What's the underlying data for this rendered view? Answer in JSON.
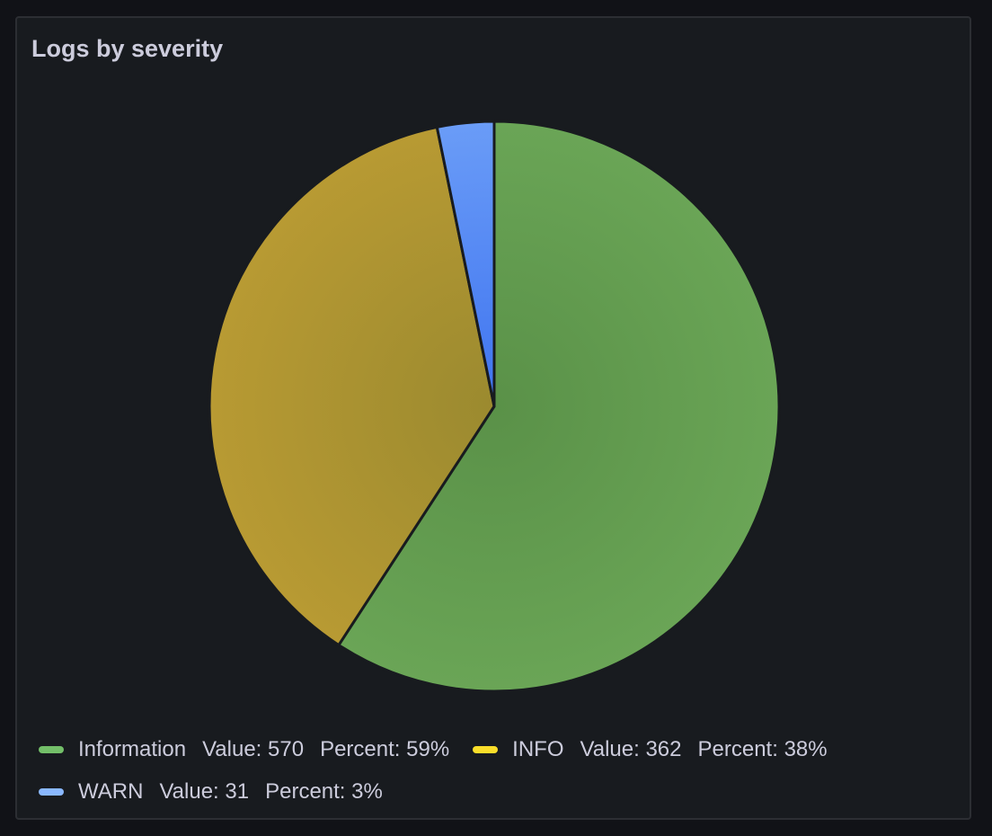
{
  "panel": {
    "title": "Logs by severity"
  },
  "chart_data": {
    "type": "pie",
    "title": "Logs by severity",
    "series": [
      {
        "name": "Information",
        "value": 570,
        "percent_label": "59%",
        "color": "#73bf69"
      },
      {
        "name": "INFO",
        "value": 362,
        "percent_label": "38%",
        "color": "#fade2a"
      },
      {
        "name": "WARN",
        "value": 31,
        "percent_label": "3%",
        "color": "#8ab8ff"
      }
    ],
    "legend_placement": "bottom"
  },
  "legend": {
    "value_prefix": "Value:",
    "percent_prefix": "Percent:",
    "items": [
      {
        "label": "Information",
        "value": "570",
        "percent": "59%"
      },
      {
        "label": "INFO",
        "value": "362",
        "percent": "38%"
      },
      {
        "label": "WARN",
        "value": "31",
        "percent": "3%"
      }
    ]
  }
}
